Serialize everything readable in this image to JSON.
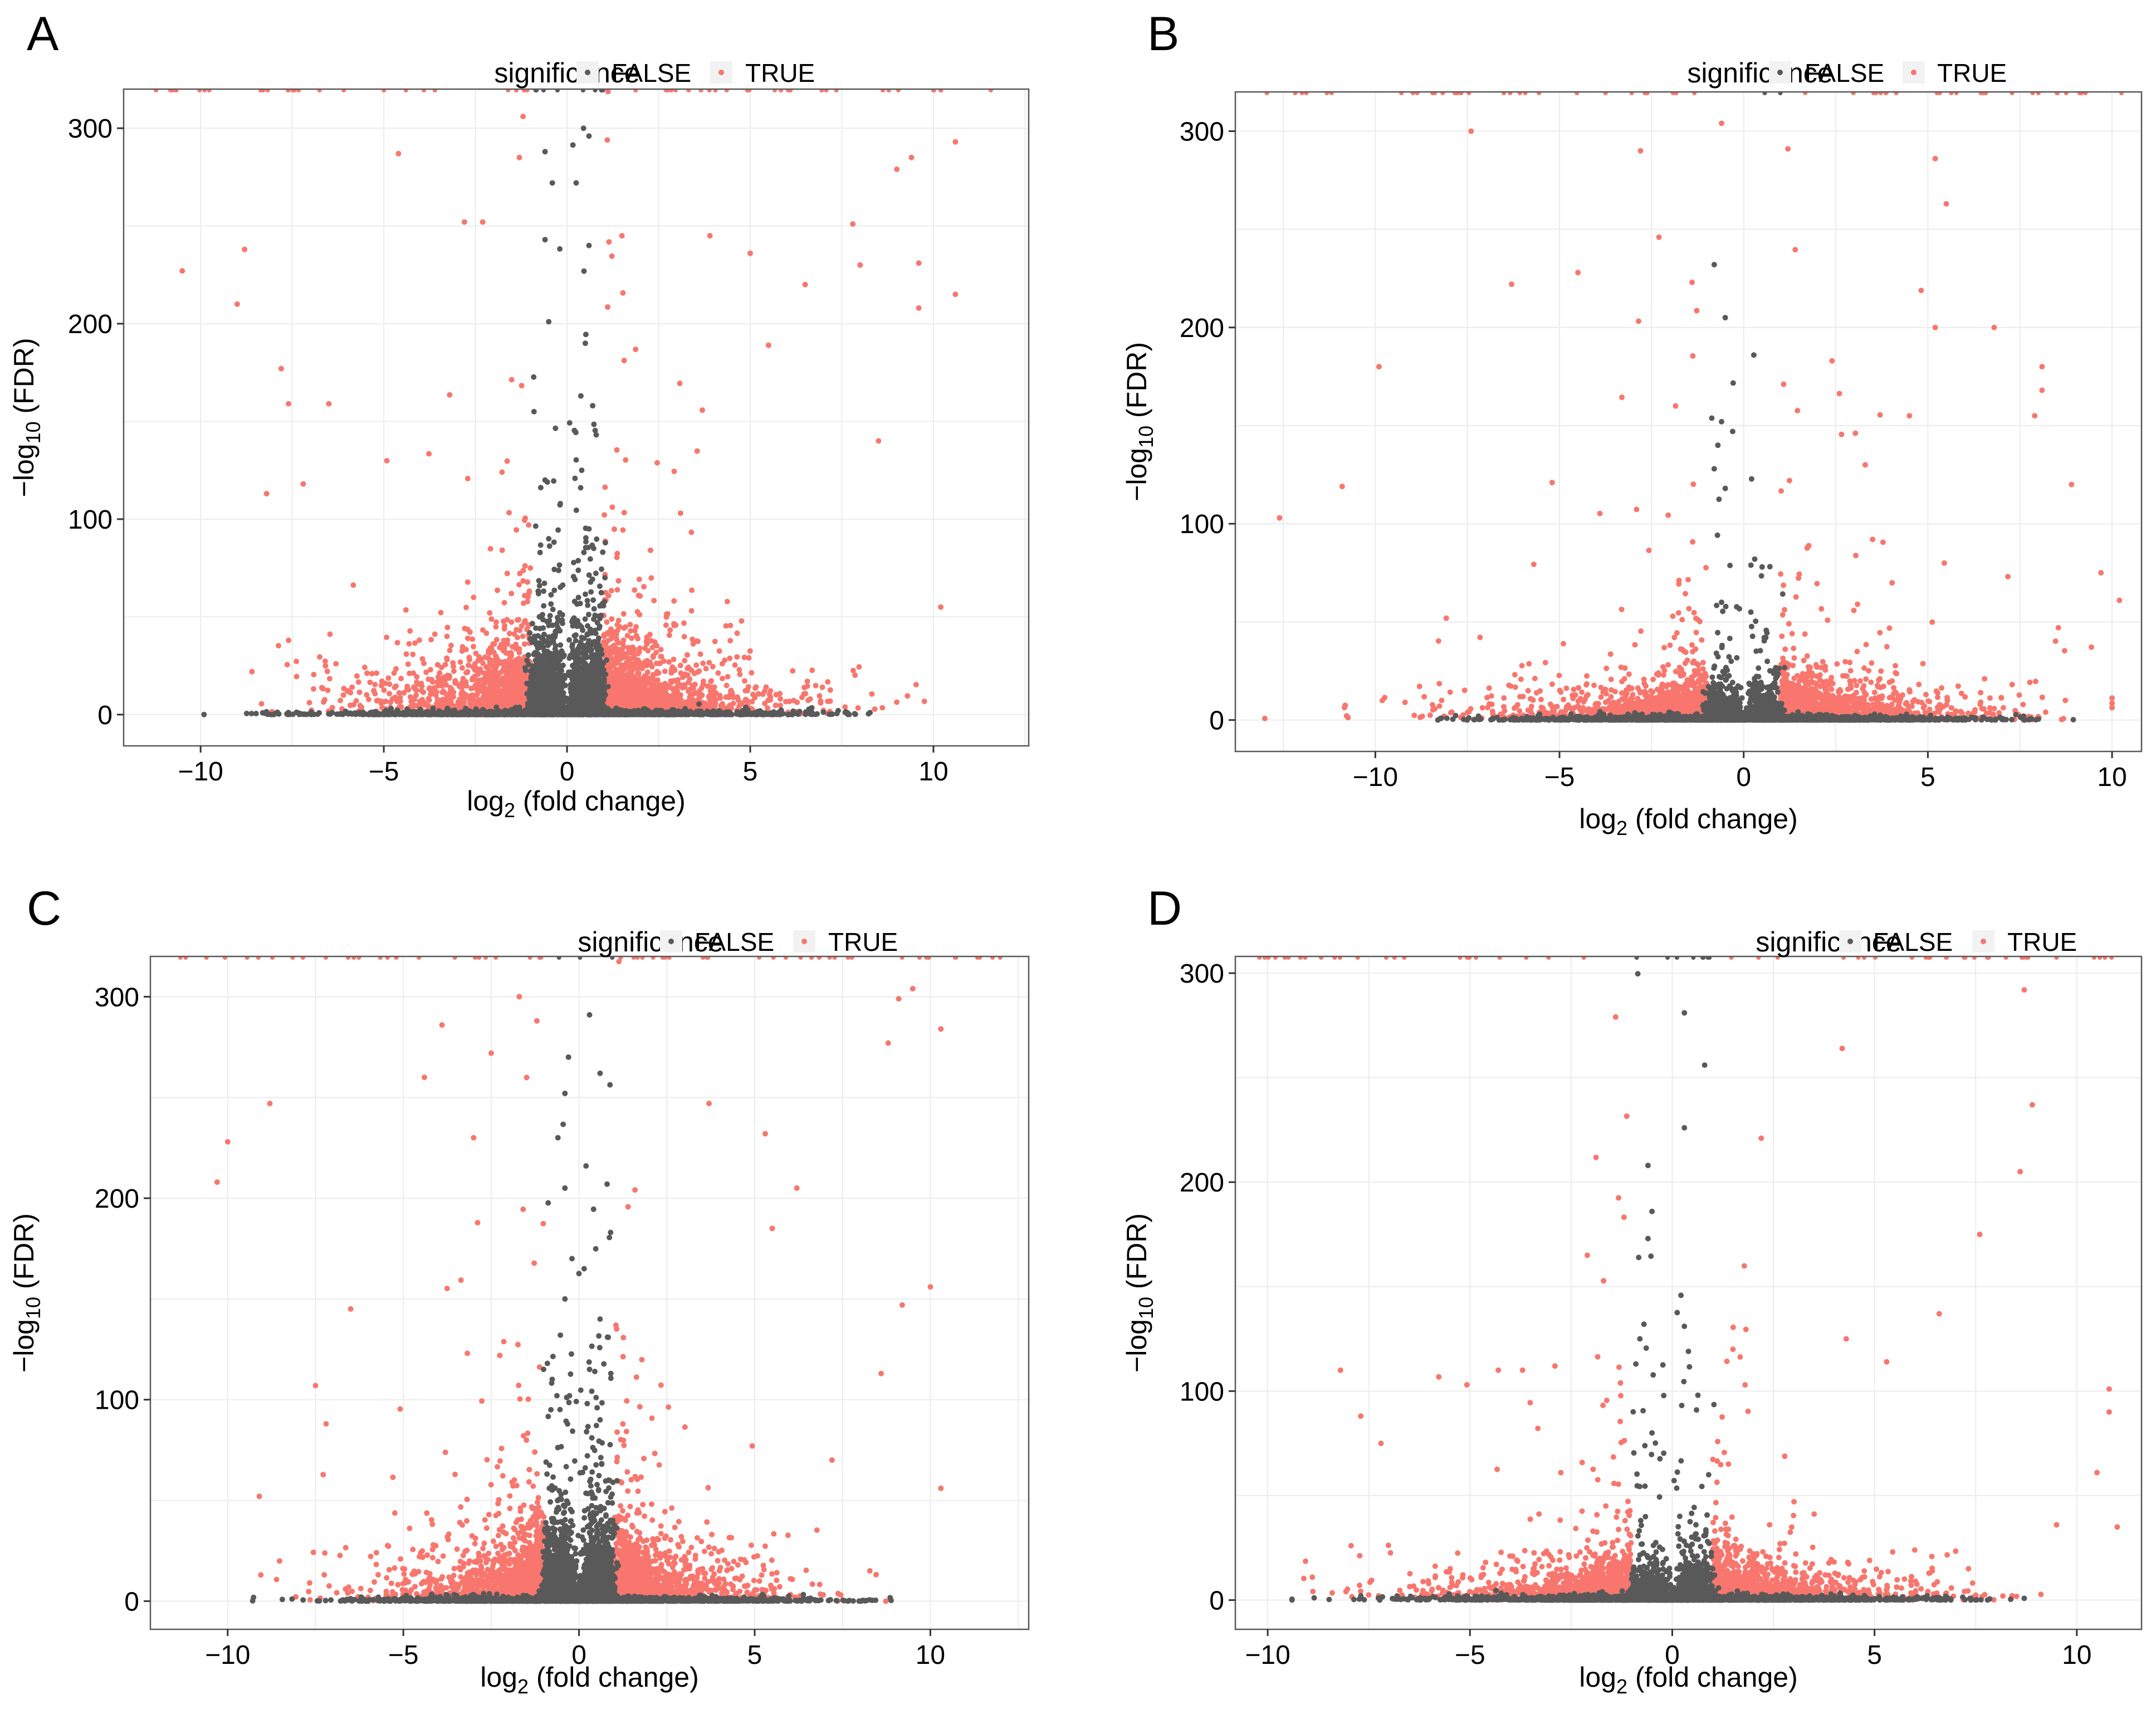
{
  "figure": {
    "colors": {
      "false": "#595959",
      "true": "#f8766d",
      "frame": "#595959",
      "grid": "#ececec",
      "legend_key_bg": "#f2f2f2"
    },
    "legend": {
      "title": "significance",
      "false_label": "FALSE",
      "true_label": "TRUE"
    }
  },
  "chart_data": [
    {
      "panel": "A",
      "type": "scatter",
      "title": "",
      "xlabel": "log₂ (fold change)",
      "ylabel": "−log₁₀ (FDR)",
      "xlabel_parts": {
        "pre": "log",
        "sub": "2",
        "post": " (fold change)"
      },
      "ylabel_parts": {
        "pre": "−log",
        "sub": "10",
        "post": " (FDR)"
      },
      "xlim": [
        -12.1,
        12.6
      ],
      "ylim": [
        -16,
        320
      ],
      "xticks": [
        -10,
        -5,
        0,
        5,
        10
      ],
      "xtick_labels": [
        "−10",
        "−5",
        "0",
        "5",
        "10"
      ],
      "yticks": [
        0,
        100,
        200,
        300
      ],
      "ytick_labels": [
        "0",
        "100",
        "200",
        "300"
      ],
      "legend_position": "top",
      "series": [
        {
          "name": "FALSE",
          "count_estimate": 3300,
          "sample": [
            [
              -0.6,
              288
            ],
            [
              0.45,
              300
            ],
            [
              0.6,
              296
            ],
            [
              -0.4,
              272
            ],
            [
              0.25,
              272
            ],
            [
              -0.6,
              243
            ],
            [
              0.6,
              240
            ],
            [
              -0.5,
              201
            ],
            [
              0.5,
              190
            ],
            [
              -0.9,
              155
            ],
            [
              0.7,
              158
            ],
            [
              -0.6,
              120
            ],
            [
              0.4,
              125
            ],
            [
              -0.5,
              90
            ],
            [
              0.6,
              95
            ],
            [
              7.4,
              2
            ],
            [
              -4.8,
              3
            ],
            [
              4.8,
              2
            ]
          ]
        },
        {
          "name": "TRUE",
          "count_estimate": 3700,
          "sample": [
            [
              -10.5,
              227
            ],
            [
              -9,
              210
            ],
            [
              -8.8,
              238
            ],
            [
              -8.2,
              113
            ],
            [
              -7.8,
              177
            ],
            [
              -7.6,
              159
            ],
            [
              -7.2,
              118
            ],
            [
              -6.5,
              159
            ],
            [
              -4.6,
              287
            ],
            [
              -2.8,
              252
            ],
            [
              -2.3,
              252
            ],
            [
              -1.2,
              306
            ],
            [
              -1.3,
              285
            ],
            [
              1.1,
              294
            ],
            [
              1.5,
              245
            ],
            [
              3.9,
              245
            ],
            [
              5,
              236
            ],
            [
              5.5,
              189
            ],
            [
              6.5,
              220
            ],
            [
              7.8,
              251
            ],
            [
              8,
              230
            ],
            [
              9,
              279
            ],
            [
              9.4,
              285
            ],
            [
              9.6,
              208
            ],
            [
              9.6,
              231
            ],
            [
              10.6,
              293
            ],
            [
              10.6,
              215
            ],
            [
              10.2,
              55
            ],
            [
              8.5,
              140
            ],
            [
              -8.6,
              22
            ],
            [
              -7.6,
              38
            ]
          ]
        }
      ]
    },
    {
      "panel": "B",
      "type": "scatter",
      "title": "",
      "xlabel": "log₂ (fold change)",
      "ylabel": "−log₁₀ (FDR)",
      "xlabel_parts": {
        "pre": "log",
        "sub": "2",
        "post": " (fold change)"
      },
      "ylabel_parts": {
        "pre": "−log",
        "sub": "10",
        "post": " (FDR)"
      },
      "xlim": [
        -13.8,
        10.8
      ],
      "ylim": [
        -16,
        320
      ],
      "xticks": [
        -10,
        -5,
        0,
        5,
        10
      ],
      "xtick_labels": [
        "−10",
        "−5",
        "0",
        "5",
        "10"
      ],
      "yticks": [
        0,
        100,
        200,
        300
      ],
      "ytick_labels": [
        "0",
        "100",
        "200",
        "300"
      ],
      "legend_position": "top",
      "series": [
        {
          "name": "FALSE",
          "count_estimate": 1600,
          "sample": [
            [
              -0.8,
              232
            ],
            [
              -0.5,
              205
            ],
            [
              -0.6,
              152
            ],
            [
              -0.3,
              147
            ],
            [
              -0.7,
              140
            ],
            [
              -0.8,
              128
            ],
            [
              -0.5,
              118
            ],
            [
              0.3,
              82
            ],
            [
              0.5,
              78
            ],
            [
              -0.6,
              60
            ],
            [
              0.6,
              42
            ],
            [
              -7.2,
              2
            ],
            [
              7.6,
              2
            ]
          ]
        },
        {
          "name": "TRUE",
          "count_estimate": 3800,
          "sample": [
            [
              -12.6,
              103
            ],
            [
              -10.9,
              119
            ],
            [
              -9.9,
              180
            ],
            [
              -7.4,
              300
            ],
            [
              -6.3,
              222
            ],
            [
              -5.2,
              121
            ],
            [
              -4.5,
              228
            ],
            [
              -2.8,
              290
            ],
            [
              -2.3,
              246
            ],
            [
              -0.6,
              304
            ],
            [
              1.2,
              291
            ],
            [
              2.4,
              183
            ],
            [
              3.3,
              130
            ],
            [
              3.5,
              92
            ],
            [
              4.5,
              155
            ],
            [
              5.2,
              286
            ],
            [
              5.5,
              263
            ],
            [
              5.2,
              200
            ],
            [
              6.8,
              200
            ],
            [
              7.9,
              155
            ],
            [
              8.1,
              180
            ],
            [
              8.1,
              168
            ],
            [
              8.9,
              120
            ],
            [
              9.7,
              75
            ],
            [
              10.2,
              61
            ],
            [
              -8.2,
              10
            ]
          ]
        }
      ]
    },
    {
      "panel": "C",
      "type": "scatter",
      "title": "",
      "xlabel": "log₂ (fold change)",
      "ylabel": "−log₁₀ (FDR)",
      "xlabel_parts": {
        "pre": "log",
        "sub": "2",
        "post": " (fold change)"
      },
      "ylabel_parts": {
        "pre": "−log",
        "sub": "10",
        "post": " (FDR)"
      },
      "xlim": [
        -12.2,
        12.8
      ],
      "ylim": [
        -14,
        320
      ],
      "xticks": [
        -10,
        -5,
        0,
        5,
        10
      ],
      "xtick_labels": [
        "−10",
        "−5",
        "0",
        "5",
        "10"
      ],
      "yticks": [
        0,
        100,
        200,
        300
      ],
      "ytick_labels": [
        "0",
        "100",
        "200",
        "300"
      ],
      "legend_position": "top",
      "series": [
        {
          "name": "FALSE",
          "count_estimate": 3000,
          "sample": [
            [
              0.3,
              291
            ],
            [
              -0.3,
              270
            ],
            [
              0.6,
              262
            ],
            [
              -0.4,
              252
            ],
            [
              -0.6,
              230
            ],
            [
              0.2,
              216
            ],
            [
              0.8,
              207
            ],
            [
              -0.4,
              205
            ],
            [
              0.9,
              183
            ],
            [
              -0.2,
              170
            ],
            [
              -0.4,
              150
            ],
            [
              0.6,
              140
            ],
            [
              -0.9,
              118
            ],
            [
              0.3,
              115
            ],
            [
              -0.8,
              95
            ],
            [
              0.6,
              90
            ],
            [
              -6.2,
              2
            ],
            [
              4.7,
              2
            ]
          ]
        },
        {
          "name": "TRUE",
          "count_estimate": 3400,
          "sample": [
            [
              -10.3,
              208
            ],
            [
              -10,
              228
            ],
            [
              -9.1,
              52
            ],
            [
              -8.8,
              247
            ],
            [
              -7.5,
              107
            ],
            [
              -7.2,
              88
            ],
            [
              -6.5,
              145
            ],
            [
              -4.4,
              260
            ],
            [
              -3.9,
              286
            ],
            [
              -3,
              230
            ],
            [
              -2.5,
              272
            ],
            [
              -1.7,
              300
            ],
            [
              -1.2,
              288
            ],
            [
              3.7,
              247
            ],
            [
              5.3,
              232
            ],
            [
              5.5,
              185
            ],
            [
              6.2,
              205
            ],
            [
              8.6,
              113
            ],
            [
              8.8,
              277
            ],
            [
              9.1,
              299
            ],
            [
              9.2,
              147
            ],
            [
              9.5,
              304
            ],
            [
              10,
              156
            ],
            [
              10.3,
              284
            ],
            [
              10.3,
              56
            ],
            [
              7.2,
              70
            ]
          ]
        }
      ]
    },
    {
      "panel": "D",
      "type": "scatter",
      "title": "",
      "xlabel": "log₂ (fold change)",
      "ylabel": "−log₁₀ (FDR)",
      "xlabel_parts": {
        "pre": "log",
        "sub": "2",
        "post": " (fold change)"
      },
      "ylabel_parts": {
        "pre": "−log",
        "sub": "10",
        "post": " (FDR)"
      },
      "xlim": [
        -10.8,
        11.6
      ],
      "ylim": [
        -14,
        308
      ],
      "xticks": [
        -10,
        -5,
        0,
        5,
        10
      ],
      "xtick_labels": [
        "−10",
        "−5",
        "0",
        "5",
        "10"
      ],
      "yticks": [
        0,
        100,
        200,
        300
      ],
      "ytick_labels": [
        "0",
        "100",
        "200",
        "300"
      ],
      "legend_position": "top",
      "series": [
        {
          "name": "FALSE",
          "count_estimate": 1800,
          "sample": [
            [
              0.3,
              281
            ],
            [
              0.8,
              256
            ],
            [
              0.3,
              226
            ],
            [
              -0.6,
              208
            ],
            [
              -0.5,
              186
            ],
            [
              -0.6,
              173
            ],
            [
              -0.7,
              132
            ],
            [
              -0.8,
              125
            ],
            [
              0.4,
              119
            ],
            [
              0.3,
              131
            ],
            [
              -0.9,
              113
            ],
            [
              0.6,
              91
            ],
            [
              -0.5,
              80
            ],
            [
              0.9,
              60
            ],
            [
              -6.8,
              2
            ],
            [
              6.3,
              2
            ]
          ]
        },
        {
          "name": "TRUE",
          "count_estimate": 3200,
          "sample": [
            [
              -9.6,
              310
            ],
            [
              -8.2,
              110
            ],
            [
              -7.7,
              88
            ],
            [
              -7.2,
              75
            ],
            [
              -4.3,
              110
            ],
            [
              -3.7,
              110
            ],
            [
              -2.9,
              112
            ],
            [
              -2.1,
              165
            ],
            [
              -1.4,
              279
            ],
            [
              1.5,
              120
            ],
            [
              1.8,
              103
            ],
            [
              2.2,
              221
            ],
            [
              4.2,
              264
            ],
            [
              4.3,
              125
            ],
            [
              5.3,
              114
            ],
            [
              6.6,
              137
            ],
            [
              7.6,
              175
            ],
            [
              8.6,
              205
            ],
            [
              8.7,
              292
            ],
            [
              8.9,
              237
            ],
            [
              10.5,
              61
            ],
            [
              10.8,
              101
            ],
            [
              10.8,
              90
            ],
            [
              11,
              35
            ],
            [
              9.5,
              36
            ]
          ]
        }
      ]
    }
  ]
}
